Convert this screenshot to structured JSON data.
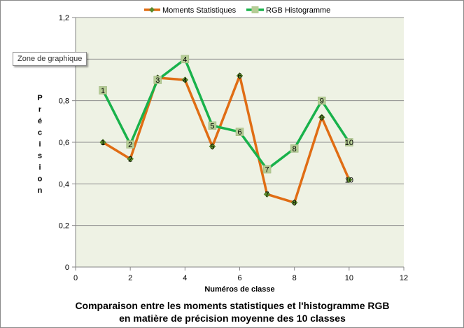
{
  "tooltip": "Zone de graphique",
  "colors": {
    "plot_bg": "#eef2e4",
    "grid": "#8c8c8c",
    "series1": "#e06d14",
    "series2": "#19b24b",
    "marker2_fill": "#b5cc95"
  },
  "chart_data": {
    "type": "line",
    "title": "Comparaison entre les moments statistiques et l'histogramme RGB",
    "subtitle": "en matière de précision moyenne des 10 classes",
    "xlabel": "Numéros de classe",
    "ylabel": "Précision",
    "xlim": [
      0,
      12
    ],
    "ylim": [
      0,
      1.2
    ],
    "x_ticks": [
      "0",
      "2",
      "4",
      "6",
      "8",
      "10",
      "12"
    ],
    "y_ticks": [
      "0",
      "0,2",
      "0,4",
      "0,6",
      "0,8",
      "1",
      "1,2"
    ],
    "grid": true,
    "legend_position": "top",
    "series": [
      {
        "name": "Moments Statistiques",
        "marker": "diamond",
        "x": [
          1,
          2,
          3,
          4,
          5,
          6,
          7,
          8,
          9,
          10
        ],
        "y": [
          0.6,
          0.52,
          0.91,
          0.9,
          0.58,
          0.92,
          0.35,
          0.31,
          0.72,
          0.42
        ],
        "labels": [
          "1",
          "2",
          "3",
          "4",
          "5",
          "6",
          "7",
          "8",
          "9",
          "10"
        ]
      },
      {
        "name": "RGB Histogramme",
        "marker": "square",
        "x": [
          1,
          2,
          3,
          4,
          5,
          6,
          7,
          8,
          9,
          10
        ],
        "y": [
          0.85,
          0.59,
          0.9,
          1.0,
          0.68,
          0.65,
          0.47,
          0.57,
          0.8,
          0.6
        ],
        "labels": [
          "1",
          "2",
          "3",
          "4",
          "5",
          "6",
          "7",
          "8",
          "9",
          "10"
        ]
      }
    ]
  }
}
